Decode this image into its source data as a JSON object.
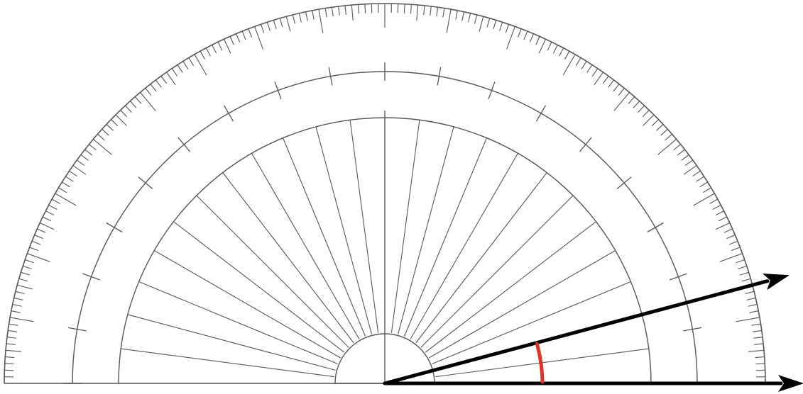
{
  "protractor": {
    "range_degrees": [
      0,
      180
    ],
    "minor_tick_step_degrees": 1,
    "mid_tick_step_degrees": 5,
    "major_tick_step_degrees": 10,
    "spoke_step_degrees": 7.5,
    "line_color": "#555555"
  },
  "angle": {
    "ray_1_degrees": 0,
    "ray_2_degrees": 15,
    "ray_color": "#000000",
    "arc_color": "#e0342a"
  }
}
